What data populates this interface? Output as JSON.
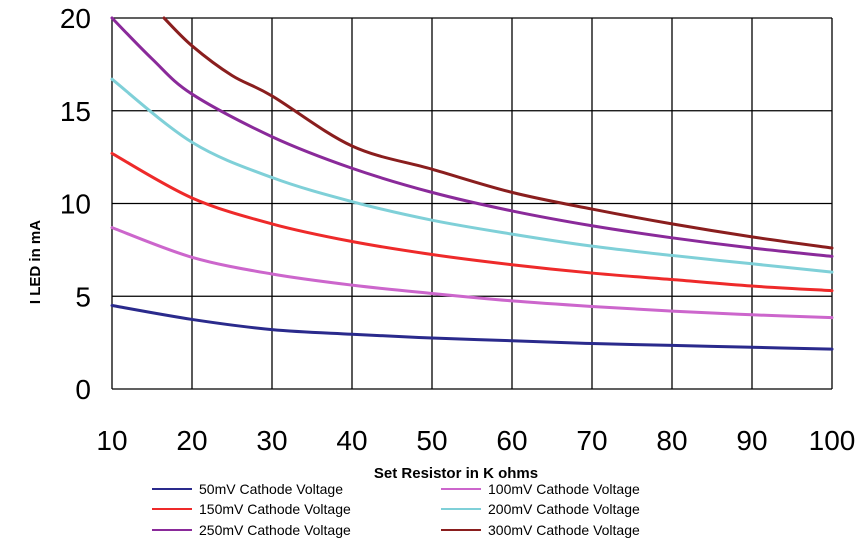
{
  "chart_data": {
    "type": "line",
    "title": "",
    "xlabel": "Set Resistor  in K ohms",
    "ylabel": "I LED in mA",
    "xlim": [
      10,
      100
    ],
    "ylim": [
      0,
      20
    ],
    "xticks": [
      10,
      20,
      30,
      40,
      50,
      60,
      70,
      80,
      90,
      100
    ],
    "yticks": [
      0,
      5,
      10,
      15,
      20
    ],
    "grid": true,
    "legend_position": "bottom",
    "series": [
      {
        "name": "50mV Cathode Voltage",
        "color": "#2a2a8c",
        "x": [
          10,
          20,
          30,
          40,
          50,
          60,
          70,
          80,
          90,
          100
        ],
        "y": [
          4.5,
          3.75,
          3.2,
          2.95,
          2.75,
          2.6,
          2.45,
          2.35,
          2.25,
          2.15
        ]
      },
      {
        "name": "100mV Cathode Voltage",
        "color": "#cc66cc",
        "x": [
          10,
          20,
          30,
          40,
          50,
          60,
          70,
          80,
          90,
          100
        ],
        "y": [
          8.7,
          7.1,
          6.2,
          5.6,
          5.15,
          4.75,
          4.45,
          4.2,
          4.0,
          3.85
        ]
      },
      {
        "name": "150mV Cathode Voltage",
        "color": "#ee2a2a",
        "x": [
          10,
          20,
          30,
          40,
          50,
          60,
          70,
          80,
          90,
          100
        ],
        "y": [
          12.7,
          10.3,
          8.9,
          7.95,
          7.25,
          6.7,
          6.25,
          5.9,
          5.55,
          5.3
        ]
      },
      {
        "name": "200mV Cathode Voltage",
        "color": "#7fd0d8",
        "x": [
          10,
          20,
          30,
          40,
          50,
          60,
          70,
          80,
          90,
          100
        ],
        "y": [
          16.7,
          13.3,
          11.4,
          10.1,
          9.1,
          8.35,
          7.7,
          7.2,
          6.75,
          6.3
        ]
      },
      {
        "name": "250mV Cathode Voltage",
        "color": "#8a2a9a",
        "x": [
          10,
          15,
          20,
          30,
          40,
          50,
          60,
          70,
          80,
          90,
          100
        ],
        "y": [
          20.0,
          17.8,
          15.9,
          13.6,
          11.9,
          10.6,
          9.6,
          8.8,
          8.15,
          7.6,
          7.15
        ]
      },
      {
        "name": "300mV Cathode Voltage",
        "color": "#8a1e1e",
        "x": [
          16.5,
          20,
          25,
          30,
          40,
          50,
          60,
          70,
          80,
          90,
          100
        ],
        "y": [
          20.0,
          18.5,
          16.9,
          15.8,
          13.1,
          11.85,
          10.6,
          9.7,
          8.9,
          8.2,
          7.6
        ]
      }
    ]
  }
}
